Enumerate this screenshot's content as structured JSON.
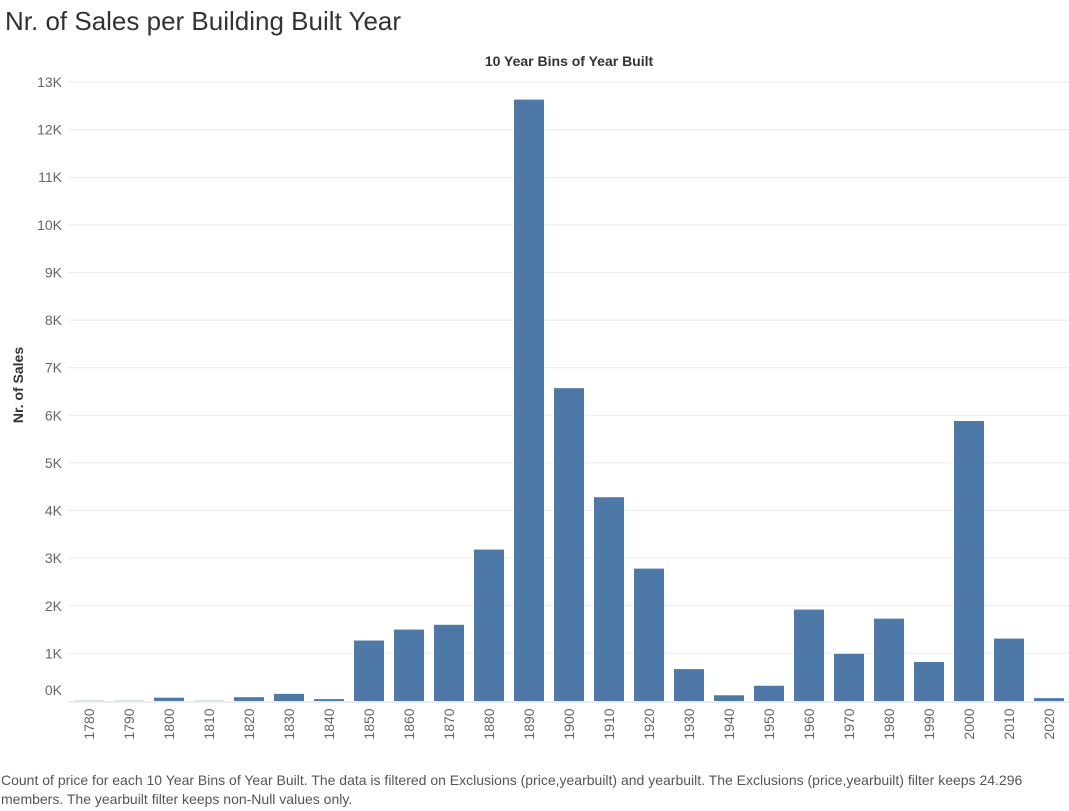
{
  "page": {
    "title": "Nr. of Sales per Building Built Year",
    "caption": "Count of price for each 10 Year Bins of Year Built. The data is filtered on Exclusions (price,yearbuilt) and yearbuilt. The Exclusions (price,yearbuilt) filter keeps 24.296 members. The yearbuilt filter keeps non-Null values only."
  },
  "chart_data": {
    "type": "bar",
    "title": "10 Year Bins of Year Built",
    "xlabel": "",
    "ylabel": "Nr. of Sales",
    "categories": [
      "1780",
      "1790",
      "1800",
      "1810",
      "1820",
      "1830",
      "1840",
      "1850",
      "1860",
      "1870",
      "1880",
      "1890",
      "1900",
      "1910",
      "1920",
      "1930",
      "1940",
      "1950",
      "1960",
      "1970",
      "1980",
      "1990",
      "2000",
      "2010",
      "2020"
    ],
    "values": [
      5,
      5,
      70,
      5,
      80,
      150,
      40,
      1270,
      1500,
      1600,
      3180,
      12630,
      6570,
      4280,
      2780,
      670,
      120,
      320,
      1920,
      990,
      1730,
      820,
      5880,
      1310,
      60
    ],
    "ylim": [
      0,
      13000
    ],
    "yticks": [
      0,
      1000,
      2000,
      3000,
      4000,
      5000,
      6000,
      7000,
      8000,
      9000,
      10000,
      11000,
      12000,
      13000
    ],
    "ytick_labels": [
      "0K",
      "1K",
      "2K",
      "3K",
      "4K",
      "5K",
      "6K",
      "7K",
      "8K",
      "9K",
      "10K",
      "11K",
      "12K",
      "13K"
    ],
    "grid": true,
    "colors": {
      "bar": "#4e79a7",
      "grid": "#ebebeb",
      "axis_line": "#d9d9d9",
      "tick_text": "#666666"
    }
  }
}
